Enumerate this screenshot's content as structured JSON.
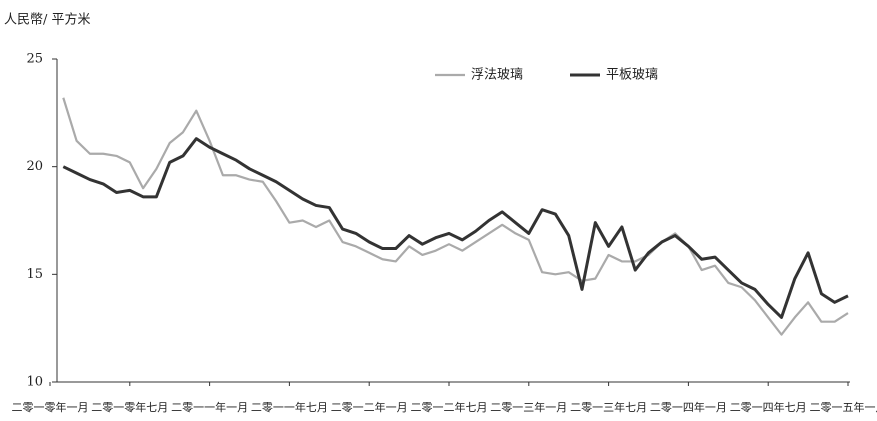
{
  "chart_data": {
    "type": "line",
    "y_label": "人民幣/ 平方米",
    "categories": [
      "二零一零年一月",
      null,
      null,
      null,
      null,
      null,
      "二零一零年七月",
      null,
      null,
      null,
      null,
      null,
      "二零一一年一月",
      null,
      null,
      null,
      null,
      null,
      "二零一一年七月",
      null,
      null,
      null,
      null,
      null,
      "二零一二年一月",
      null,
      null,
      null,
      null,
      null,
      "二零一二年七月",
      null,
      null,
      null,
      null,
      null,
      "二零一三年一月",
      null,
      null,
      null,
      null,
      null,
      "二零一三年七月",
      null,
      null,
      null,
      null,
      null,
      "二零一四年一月",
      null,
      null,
      null,
      null,
      null,
      "二零一四年七月",
      null,
      null,
      null,
      null,
      null,
      "二零一五年一月"
    ],
    "series": [
      {
        "name": "浮法玻璃",
        "color": "#aaaaaa",
        "values": [
          null,
          23.2,
          21.2,
          20.6,
          20.6,
          20.5,
          20.2,
          19.0,
          19.9,
          21.1,
          21.6,
          22.6,
          21.2,
          19.6,
          19.6,
          19.4,
          19.3,
          18.4,
          17.4,
          17.5,
          17.2,
          17.5,
          16.5,
          16.3,
          16.0,
          15.7,
          15.6,
          16.3,
          15.9,
          16.1,
          16.4,
          16.1,
          16.5,
          16.9,
          17.3,
          16.9,
          16.6,
          15.1,
          15.0,
          15.1,
          14.7,
          14.8,
          15.9,
          15.6,
          15.6,
          15.9,
          16.5,
          16.9,
          16.3,
          15.2,
          15.4,
          14.6,
          14.4,
          13.8,
          13.0,
          12.2,
          13.0,
          13.7,
          12.8,
          12.8,
          13.2
        ]
      },
      {
        "name": "平板玻璃",
        "color": "#333333",
        "values": [
          null,
          20.0,
          19.7,
          19.4,
          19.2,
          18.8,
          18.9,
          18.6,
          18.6,
          20.2,
          20.5,
          21.3,
          20.9,
          20.6,
          20.3,
          19.9,
          19.6,
          19.3,
          18.9,
          18.5,
          18.2,
          18.1,
          17.1,
          16.9,
          16.5,
          16.2,
          16.2,
          16.8,
          16.4,
          16.7,
          16.9,
          16.6,
          17.0,
          17.5,
          17.9,
          17.4,
          16.9,
          18.0,
          17.8,
          16.8,
          14.3,
          17.4,
          16.3,
          17.2,
          15.2,
          16.0,
          16.5,
          16.8,
          16.3,
          15.7,
          15.8,
          15.2,
          14.6,
          14.3,
          13.6,
          13.0,
          14.8,
          16.0,
          14.1,
          13.7,
          14.0
        ]
      }
    ],
    "ylim": [
      10,
      25
    ],
    "yticks": [
      10,
      15,
      20,
      25
    ],
    "grid": false,
    "legend": "top"
  }
}
